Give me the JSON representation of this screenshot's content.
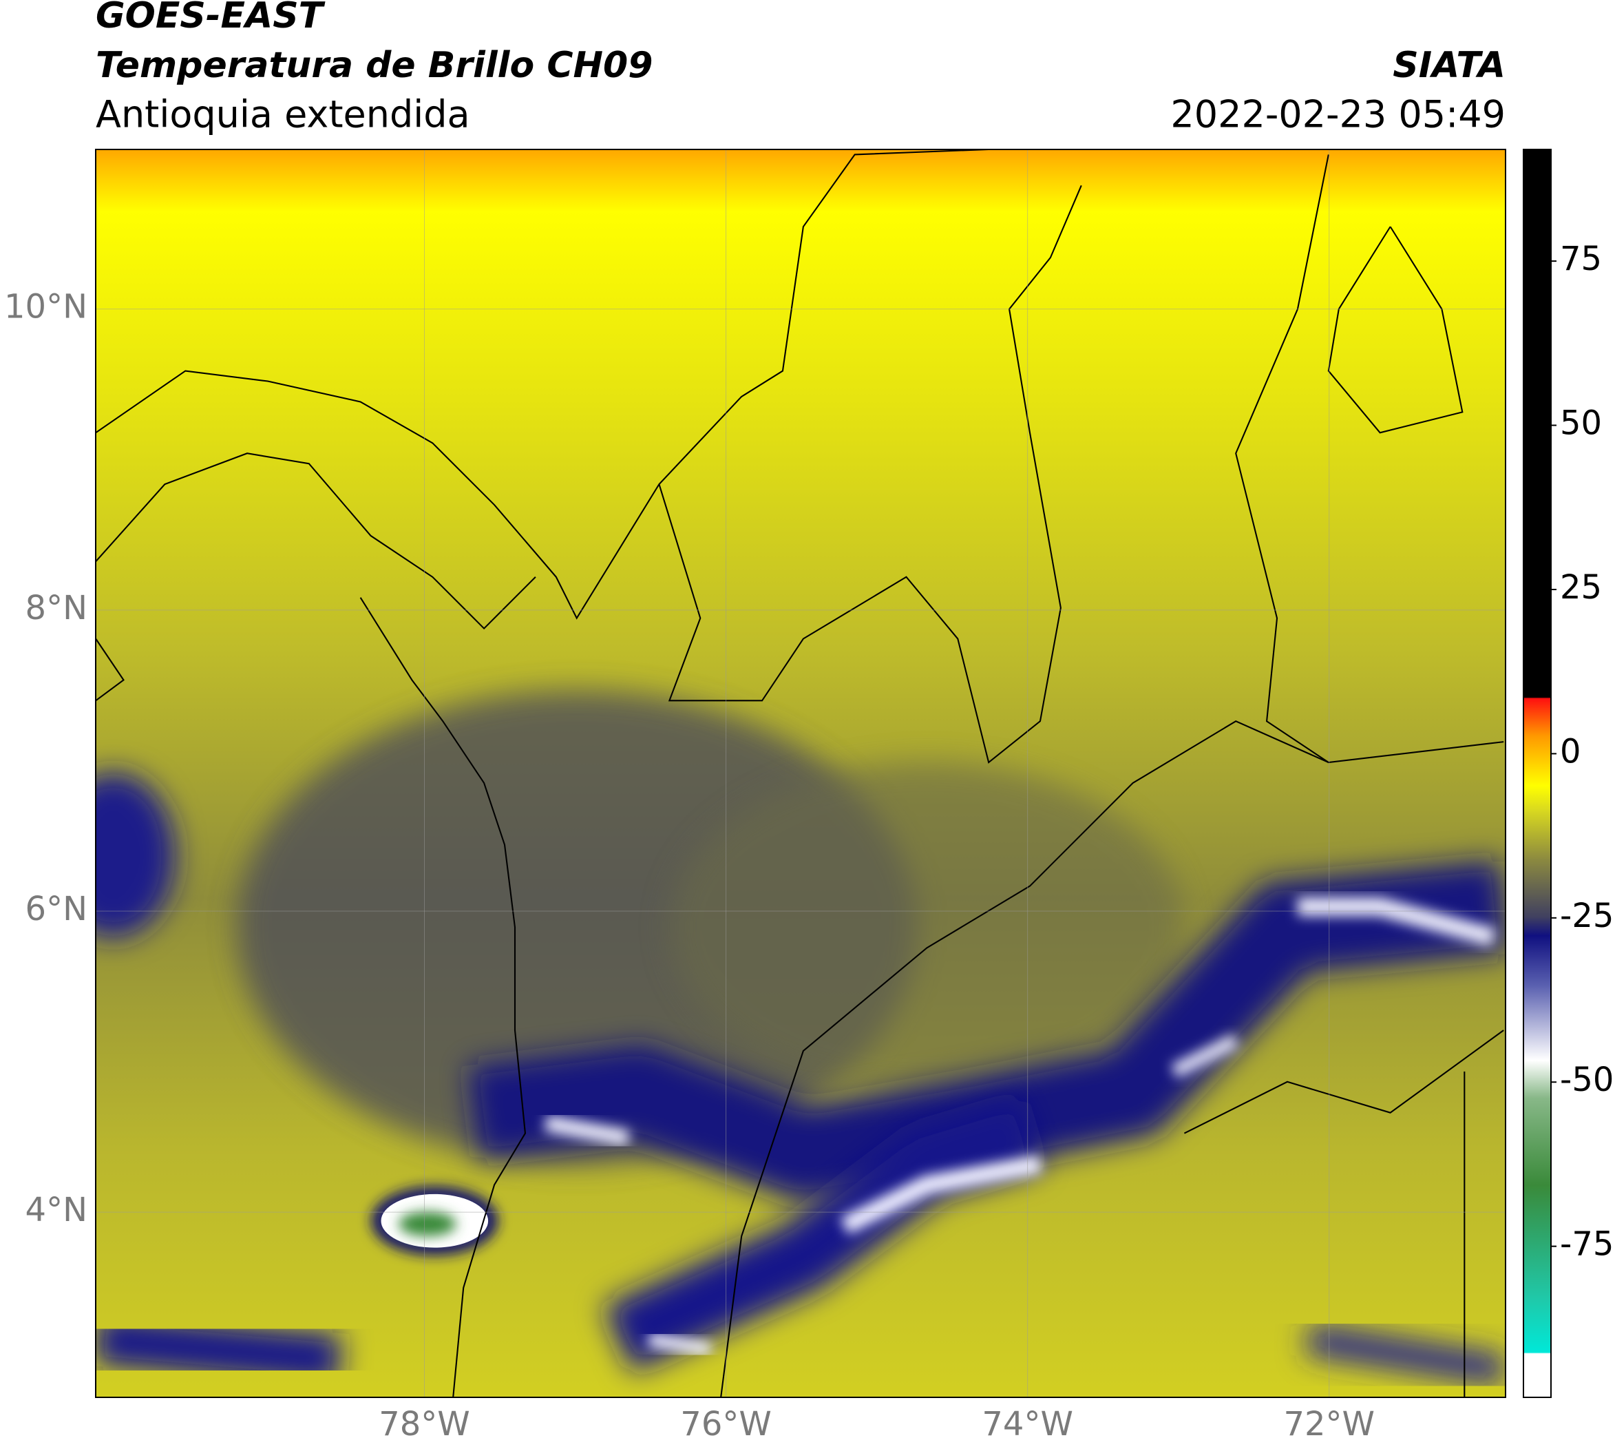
{
  "header": {
    "title": "GOES-EAST",
    "subtitle": "Temperatura de Brillo CH09",
    "region": "Antioquia extendida",
    "source": "SIATA",
    "datetime": "2022-02-23 05:49"
  },
  "map": {
    "xlim": [
      -80.18,
      -70.83
    ],
    "ylim": [
      2.77,
      11.06
    ],
    "xticks": [
      {
        "value": -78,
        "label": "78°W"
      },
      {
        "value": -76,
        "label": "76°W"
      },
      {
        "value": -74,
        "label": "74°W"
      },
      {
        "value": -72,
        "label": "72°W"
      }
    ],
    "yticks": [
      {
        "value": 10,
        "label": "10°N"
      },
      {
        "value": 8,
        "label": "8°N"
      },
      {
        "value": 6,
        "label": "6°N"
      },
      {
        "value": 4,
        "label": "4°N"
      }
    ],
    "grid": true
  },
  "colorbar": {
    "ylim": [
      -98,
      92
    ],
    "yticks": [
      75,
      50,
      25,
      0,
      -25,
      -50,
      -75
    ]
  }
}
